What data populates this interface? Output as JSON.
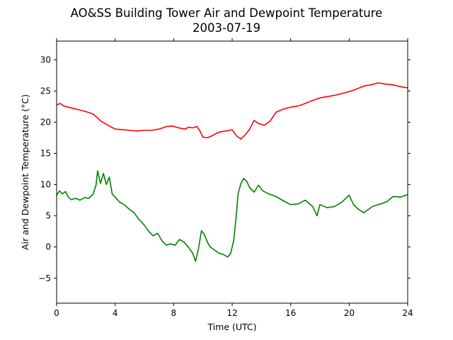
{
  "chart_data": {
    "type": "line",
    "title": "AO&SS Building Tower Air and Dewpoint Temperature",
    "subtitle": "2003-07-19",
    "xlabel": "Time (UTC)",
    "ylabel": "Air and Dewpoint Temperature (°C)",
    "xlim": [
      0,
      24
    ],
    "ylim": [
      -9,
      33
    ],
    "xticks": [
      0,
      4,
      8,
      12,
      16,
      20,
      24
    ],
    "yticks": [
      -5,
      0,
      5,
      10,
      15,
      20,
      25,
      30
    ],
    "grid": false,
    "legend": "none",
    "series": [
      {
        "color": "#ff0000",
        "x": [
          0,
          0.25,
          0.5,
          1,
          1.5,
          2,
          2.5,
          2.8,
          3,
          3.3,
          3.6,
          4,
          4.5,
          5,
          5.5,
          6,
          6.5,
          7,
          7.5,
          7.9,
          8.2,
          8.5,
          8.8,
          9,
          9.3,
          9.6,
          9.8,
          10,
          10.3,
          10.6,
          11,
          11.3,
          11.6,
          12,
          12.3,
          12.6,
          12.9,
          13.2,
          13.5,
          13.8,
          14.2,
          14.6,
          15,
          15.5,
          16,
          16.5,
          17,
          17.5,
          18,
          18.5,
          19,
          19.5,
          20,
          20.5,
          21,
          21.5,
          22,
          22.5,
          23,
          23.5,
          24
        ],
        "y": [
          22.8,
          23.0,
          22.6,
          22.3,
          22.0,
          21.7,
          21.3,
          20.7,
          20.2,
          19.8,
          19.4,
          18.9,
          18.8,
          18.7,
          18.6,
          18.7,
          18.7,
          18.9,
          19.3,
          19.4,
          19.2,
          19.0,
          18.9,
          19.2,
          19.1,
          19.3,
          18.6,
          17.6,
          17.5,
          17.8,
          18.3,
          18.5,
          18.6,
          18.8,
          17.8,
          17.3,
          18.0,
          18.9,
          20.3,
          19.8,
          19.5,
          20.2,
          21.6,
          22.1,
          22.4,
          22.6,
          23.0,
          23.5,
          23.9,
          24.1,
          24.3,
          24.6,
          24.9,
          25.3,
          25.8,
          26.0,
          26.3,
          26.1,
          26.0,
          25.7,
          25.5
        ]
      },
      {
        "color": "#008000",
        "x": [
          0,
          0.2,
          0.4,
          0.6,
          0.8,
          1,
          1.3,
          1.6,
          1.9,
          2.2,
          2.5,
          2.7,
          2.8,
          3,
          3.2,
          3.4,
          3.6,
          3.8,
          4,
          4.3,
          4.6,
          5,
          5.3,
          5.6,
          6,
          6.3,
          6.6,
          6.9,
          7.2,
          7.5,
          7.8,
          8.1,
          8.4,
          8.7,
          9,
          9.3,
          9.5,
          9.7,
          9.9,
          10.1,
          10.3,
          10.5,
          10.8,
          11.1,
          11.4,
          11.7,
          11.9,
          12.1,
          12.3,
          12.4,
          12.6,
          12.8,
          13,
          13.2,
          13.5,
          13.8,
          14.1,
          14.5,
          15,
          15.5,
          16,
          16.5,
          17,
          17.5,
          17.8,
          18,
          18.5,
          19,
          19.5,
          20,
          20.3,
          20.6,
          21,
          21.3,
          21.6,
          22,
          22.3,
          22.6,
          23,
          23.5,
          24
        ],
        "y": [
          8.3,
          9.0,
          8.5,
          8.9,
          8.0,
          7.6,
          7.8,
          7.5,
          7.9,
          7.8,
          8.5,
          10.0,
          12.2,
          10.2,
          11.8,
          10.0,
          11.2,
          8.5,
          8.0,
          7.2,
          6.8,
          6.0,
          5.5,
          4.5,
          3.5,
          2.5,
          1.8,
          2.2,
          1.0,
          0.3,
          0.5,
          0.3,
          1.2,
          0.8,
          0.0,
          -1.0,
          -2.3,
          -0.2,
          2.6,
          2.0,
          0.8,
          0.0,
          -0.5,
          -1.0,
          -1.2,
          -1.6,
          -1.0,
          1.0,
          5.5,
          8.5,
          10.2,
          11.0,
          10.5,
          9.5,
          8.8,
          9.9,
          9.0,
          8.5,
          8.1,
          7.4,
          6.8,
          6.9,
          7.5,
          6.5,
          5.0,
          6.8,
          6.3,
          6.5,
          7.2,
          8.3,
          6.8,
          6.1,
          5.5,
          6.0,
          6.5,
          6.8,
          7.0,
          7.3,
          8.1,
          8.0,
          8.4
        ]
      }
    ]
  }
}
